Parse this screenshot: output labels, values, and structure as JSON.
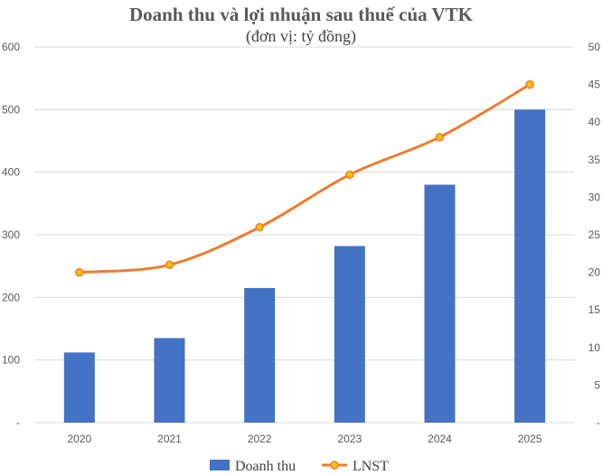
{
  "chart_data": {
    "type": "bar",
    "title": "Doanh thu và lợi nhuận sau thuế của VTK",
    "subtitle": "(đơn vị: tỷ đồng)",
    "categories": [
      "2020",
      "2021",
      "2022",
      "2023",
      "2024",
      "2025"
    ],
    "y_left": {
      "ylim": [
        0,
        600
      ],
      "ticks": [
        0,
        100,
        200,
        300,
        400,
        500,
        600
      ],
      "tick_labels": [
        "-",
        "100",
        "200",
        "300",
        "400",
        "500",
        "600"
      ]
    },
    "y_right": {
      "ylim": [
        0,
        50
      ],
      "ticks": [
        0,
        5,
        10,
        15,
        20,
        25,
        30,
        35,
        40,
        45,
        50
      ],
      "tick_labels": [
        "-",
        "5",
        "10",
        "15",
        "20",
        "25",
        "30",
        "35",
        "40",
        "45",
        "50"
      ]
    },
    "grid": true,
    "legend_position": "bottom",
    "series": [
      {
        "name": "Doanh thu",
        "type": "bar",
        "axis": "left",
        "color": "#4472C4",
        "values": [
          112,
          135,
          215,
          282,
          380,
          500
        ]
      },
      {
        "name": "LNST",
        "type": "line",
        "axis": "right",
        "color": "#ED7D31",
        "marker_color": "#FFC000",
        "smooth": true,
        "values": [
          20,
          21,
          26,
          33,
          38,
          45
        ]
      }
    ]
  }
}
